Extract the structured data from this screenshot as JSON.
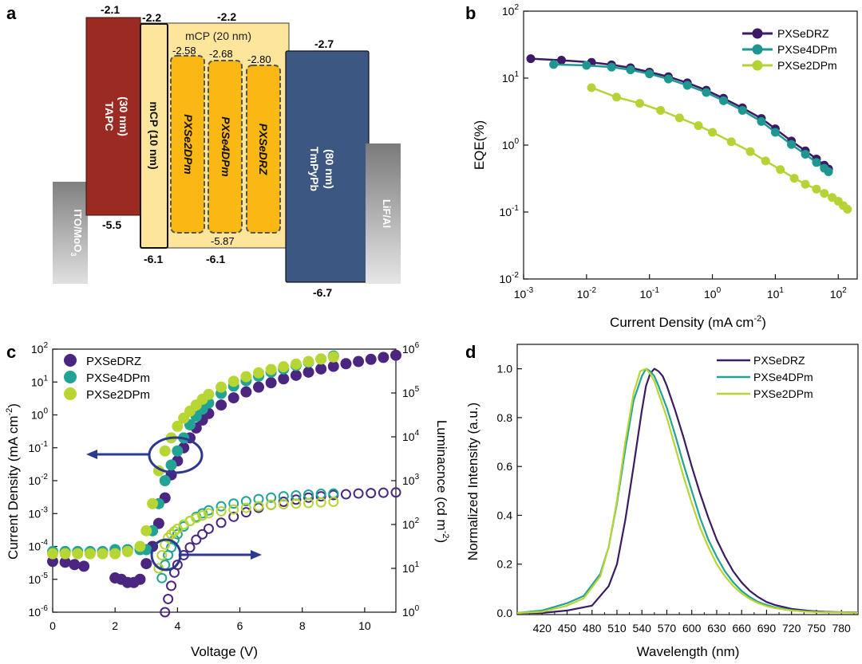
{
  "panel_labels": {
    "a": "a",
    "b": "b",
    "c": "c",
    "d": "d"
  },
  "chart_data": [
    {
      "type": "energy-level-diagram",
      "panel": "a",
      "layers": [
        {
          "name": "ITO/MoO3",
          "label_main": "ITO/MoO",
          "label_sub": "3",
          "color": "#8c8c8c"
        },
        {
          "name": "TAPC",
          "label": "TAPC",
          "label2": "(30 nm)",
          "lumo": "-2.1",
          "homo": "-5.5",
          "color": "#9a2a24"
        },
        {
          "name": "mCP (10 nm)",
          "label": "mCP (10 nm)",
          "lumo": "-2.2",
          "homo": "-6.1",
          "color": "#fde39a"
        },
        {
          "name": "mCP (20 nm)",
          "label": "mCP (20 nm)",
          "lumo": "-2.2",
          "homo": "-6.1",
          "color": "#fde39a"
        },
        {
          "name": "PXSe2DPm",
          "label": "PXSe2DPm",
          "lumo": "-2.58",
          "color": "#fbb613"
        },
        {
          "name": "PXSe4DPm",
          "label": "PXSe4DPm",
          "lumo": "-2.68",
          "homo": "-5.87",
          "color": "#fbb613"
        },
        {
          "name": "PXSeDRZ",
          "label": "PXSeDRZ",
          "lumo": "-2.80",
          "color": "#fbb613"
        },
        {
          "name": "TmPyPb",
          "label": "TmPyPb",
          "label2": "(80 nm)",
          "lumo": "-2.7",
          "homo": "-6.7",
          "color": "#3b5780"
        },
        {
          "name": "LiF/Al",
          "label": "LiF/Al",
          "color": "#8c8c8c"
        }
      ]
    },
    {
      "type": "line",
      "panel": "b",
      "xscale": "log",
      "yscale": "log",
      "xlim": [
        0.001,
        200
      ],
      "ylim": [
        0.01,
        100
      ],
      "xlabel": "Current Density (mA cm",
      "xlabel_sup": "-2",
      "xlabel_end": ")",
      "ylabel": "EQE(%)",
      "xticks": [
        {
          "v": 0.001,
          "base": "10",
          "exp": "-3"
        },
        {
          "v": 0.01,
          "base": "10",
          "exp": "-2"
        },
        {
          "v": 0.1,
          "base": "10",
          "exp": "-1"
        },
        {
          "v": 1,
          "base": "10",
          "exp": "0"
        },
        {
          "v": 10,
          "base": "10",
          "exp": "1"
        },
        {
          "v": 100,
          "base": "10",
          "exp": "2"
        }
      ],
      "yticks": [
        {
          "v": 0.01,
          "base": "10",
          "exp": "-2"
        },
        {
          "v": 0.1,
          "base": "10",
          "exp": "-1"
        },
        {
          "v": 1,
          "base": "10",
          "exp": "0"
        },
        {
          "v": 10,
          "base": "10",
          "exp": "1"
        },
        {
          "v": 100,
          "base": "10",
          "exp": "2"
        }
      ],
      "legend_position": "top-right",
      "series": [
        {
          "name": "PXSeDRZ",
          "color": "#3b1a66",
          "x": [
            0.0013,
            0.004,
            0.012,
            0.025,
            0.05,
            0.1,
            0.2,
            0.4,
            0.8,
            1.5,
            3,
            6,
            10,
            18,
            30,
            45,
            60,
            70
          ],
          "y": [
            19.5,
            18.5,
            17.2,
            15.8,
            14.3,
            12.3,
            10.5,
            8.5,
            6.6,
            5.0,
            3.6,
            2.5,
            1.75,
            1.15,
            0.82,
            0.62,
            0.5,
            0.44
          ]
        },
        {
          "name": "PXSe4DPm",
          "color": "#1e9790",
          "x": [
            0.003,
            0.01,
            0.025,
            0.05,
            0.1,
            0.2,
            0.4,
            0.8,
            1.5,
            3,
            6,
            10,
            18,
            30,
            45,
            60,
            70
          ],
          "y": [
            16.0,
            15.5,
            14.6,
            13.3,
            11.6,
            9.7,
            7.8,
            6.1,
            4.6,
            3.3,
            2.25,
            1.55,
            1.02,
            0.73,
            0.55,
            0.45,
            0.4
          ]
        },
        {
          "name": "PXSe2DPm",
          "color": "#b5d335",
          "x": [
            0.012,
            0.03,
            0.07,
            0.15,
            0.3,
            0.6,
            1,
            2,
            4,
            7,
            12,
            20,
            30,
            45,
            60,
            80,
            100,
            120,
            140
          ],
          "y": [
            7.2,
            5.2,
            4.2,
            3.3,
            2.55,
            1.95,
            1.55,
            1.12,
            0.8,
            0.58,
            0.43,
            0.32,
            0.26,
            0.22,
            0.19,
            0.165,
            0.145,
            0.125,
            0.11
          ]
        }
      ]
    },
    {
      "type": "scatter",
      "panel": "c",
      "xlim": [
        0,
        11
      ],
      "ylim": [
        1e-06,
        100
      ],
      "y2lim": [
        1,
        1000000
      ],
      "yscale": "log",
      "y2scale": "log",
      "xlabel": "Voltage (V)",
      "ylabel": "Current Density (mA cm",
      "ylabel_sup": "-2",
      "ylabel_end": ")",
      "y2label": "Luminacnce (cd m",
      "y2label_sup": "-2",
      "y2label_end": ")",
      "xticks": [
        0,
        2,
        4,
        6,
        8,
        10
      ],
      "yticks": [
        {
          "v": 1e-06,
          "base": "10",
          "exp": "-6"
        },
        {
          "v": 1e-05,
          "base": "10",
          "exp": "-5"
        },
        {
          "v": 0.0001,
          "base": "10",
          "exp": "-4"
        },
        {
          "v": 0.001,
          "base": "10",
          "exp": "-3"
        },
        {
          "v": 0.01,
          "base": "10",
          "exp": "-2"
        },
        {
          "v": 0.1,
          "base": "10",
          "exp": "-1"
        },
        {
          "v": 1,
          "base": "10",
          "exp": "0"
        },
        {
          "v": 10,
          "base": "10",
          "exp": "1"
        },
        {
          "v": 100,
          "base": "10",
          "exp": "2"
        }
      ],
      "y2ticks": [
        {
          "v": 1,
          "base": "10",
          "exp": "0"
        },
        {
          "v": 10,
          "base": "10",
          "exp": "1"
        },
        {
          "v": 100,
          "base": "10",
          "exp": "2"
        },
        {
          "v": 1000,
          "base": "10",
          "exp": "3"
        },
        {
          "v": 10000,
          "base": "10",
          "exp": "4"
        },
        {
          "v": 100000,
          "base": "10",
          "exp": "5"
        },
        {
          "v": 1000000,
          "base": "10",
          "exp": "6"
        }
      ],
      "legend_position": "top-left",
      "series": [
        {
          "name": "PXSeDRZ",
          "color": "#4b2681",
          "cd_x": [
            0,
            0.4,
            0.7,
            1.0,
            2.0,
            2.2,
            2.4,
            2.6,
            2.8,
            3.0,
            3.2,
            3.4,
            3.6,
            3.8,
            4.0,
            4.2,
            4.4,
            4.6,
            4.8,
            5.0,
            5.4,
            5.8,
            6.2,
            6.6,
            7.0,
            7.4,
            7.8,
            8.2,
            8.6,
            9.0,
            9.4,
            9.8,
            10.2,
            10.6,
            11.0
          ],
          "cd_y": [
            3.5e-05,
            3.3e-05,
            2.8e-05,
            2.5e-05,
            1.1e-05,
            1e-05,
            8e-06,
            8e-06,
            1e-05,
            3e-05,
            0.0001,
            0.0005,
            0.003,
            0.015,
            0.04,
            0.1,
            0.2,
            0.4,
            0.7,
            1.1,
            2.0,
            3.3,
            5,
            7,
            9.5,
            12.5,
            16,
            20,
            25,
            30,
            36,
            42,
            49,
            56,
            65
          ],
          "lum_x": [
            3.6,
            3.7,
            3.8,
            3.9,
            4.0,
            4.2,
            4.4,
            4.6,
            4.8,
            5.0,
            5.4,
            5.8,
            6.2,
            6.6,
            7.0,
            7.4,
            7.8,
            8.2,
            8.6,
            9.0,
            9.4,
            9.8,
            10.2,
            10.6,
            11.0
          ],
          "lum_y": [
            1,
            2,
            4,
            8,
            12,
            20,
            30,
            45,
            60,
            80,
            110,
            150,
            190,
            240,
            280,
            330,
            370,
            410,
            440,
            470,
            490,
            510,
            520,
            530,
            540
          ]
        },
        {
          "name": "PXSe4DPm",
          "color": "#21a395",
          "cd_x": [
            0,
            0.4,
            0.8,
            1.2,
            1.6,
            2.0,
            2.4,
            2.8,
            3.0,
            3.2,
            3.4,
            3.6,
            3.8,
            4.0,
            4.2,
            4.4,
            4.6,
            4.8,
            5.0,
            5.4,
            5.8,
            6.2,
            6.6,
            7.0,
            7.4,
            7.8,
            8.2,
            8.6,
            9.0
          ],
          "cd_y": [
            7e-05,
            7e-05,
            7e-05,
            7e-05,
            7e-05,
            8e-05,
            8e-05,
            8e-05,
            8e-05,
            0.0003,
            0.002,
            0.01,
            0.03,
            0.08,
            0.2,
            0.5,
            0.9,
            1.5,
            2.3,
            4.5,
            7.5,
            11,
            15,
            20,
            25,
            32,
            40,
            50,
            62
          ],
          "lum_x": [
            3.5,
            3.6,
            3.7,
            3.8,
            3.9,
            4.0,
            4.2,
            4.4,
            4.6,
            4.8,
            5.0,
            5.4,
            5.8,
            6.2,
            6.6,
            7.0,
            7.4,
            7.8,
            8.2,
            8.6,
            9.0
          ],
          "lum_y": [
            6,
            12,
            20,
            30,
            45,
            60,
            90,
            120,
            150,
            180,
            210,
            260,
            300,
            340,
            380,
            410,
            440,
            460,
            480,
            500,
            510
          ]
        },
        {
          "name": "PXSe2DPm",
          "color": "#b7d633",
          "cd_x": [
            0,
            0.4,
            0.8,
            1.2,
            1.6,
            2.0,
            2.4,
            2.8,
            3.0,
            3.2,
            3.4,
            3.6,
            3.8,
            4.0,
            4.2,
            4.4,
            4.6,
            4.8,
            5.0,
            5.4,
            5.8,
            6.2,
            6.6,
            7.0,
            7.4,
            7.8,
            8.2,
            8.6,
            9.0
          ],
          "cd_y": [
            6e-05,
            6e-05,
            6e-05,
            6e-05,
            6e-05,
            6e-05,
            7e-05,
            0.0001,
            0.0003,
            0.002,
            0.02,
            0.08,
            0.2,
            0.45,
            0.8,
            1.3,
            2.0,
            3.0,
            4.2,
            7,
            10.5,
            14.5,
            19,
            24,
            29,
            35,
            42,
            50,
            58
          ],
          "lum_x": [
            3.4,
            3.5,
            3.6,
            3.7,
            3.8,
            3.9,
            4.0,
            4.2,
            4.4,
            4.6,
            4.8,
            5.0,
            5.4,
            5.8,
            6.2,
            6.6,
            7.0,
            7.4,
            7.8,
            8.2,
            8.6,
            9.0
          ],
          "lum_y": [
            10,
            20,
            35,
            50,
            60,
            70,
            80,
            100,
            120,
            140,
            160,
            180,
            200,
            220,
            240,
            260,
            280,
            290,
            300,
            310,
            320,
            330
          ]
        }
      ]
    },
    {
      "type": "line",
      "panel": "d",
      "xlim": [
        390,
        800
      ],
      "ylim": [
        0,
        1.1
      ],
      "xlabel": "Wavelength (nm)",
      "ylabel": "Normalized Intensity (a.u.)",
      "xticks": [
        420,
        450,
        480,
        510,
        540,
        570,
        600,
        630,
        660,
        690,
        720,
        750,
        780
      ],
      "yticks": [
        0.0,
        0.2,
        0.4,
        0.6,
        0.8,
        1.0
      ],
      "legend_position": "top-right",
      "series": [
        {
          "name": "PXSeDRZ",
          "color": "#3b1a66",
          "x": [
            390,
            420,
            450,
            480,
            500,
            510,
            520,
            530,
            540,
            545,
            550,
            555,
            560,
            565,
            570,
            580,
            590,
            600,
            610,
            620,
            630,
            640,
            650,
            660,
            670,
            680,
            690,
            700,
            720,
            740,
            760,
            780,
            800
          ],
          "y": [
            0,
            0,
            0.01,
            0.03,
            0.11,
            0.2,
            0.38,
            0.6,
            0.83,
            0.93,
            0.98,
            1.0,
            0.99,
            0.97,
            0.93,
            0.83,
            0.72,
            0.6,
            0.49,
            0.39,
            0.3,
            0.23,
            0.17,
            0.125,
            0.09,
            0.065,
            0.045,
            0.033,
            0.017,
            0.009,
            0.005,
            0.003,
            0.002
          ]
        },
        {
          "name": "PXSe4DPm",
          "color": "#21a395",
          "x": [
            390,
            420,
            450,
            470,
            490,
            500,
            510,
            520,
            530,
            540,
            545,
            550,
            555,
            560,
            570,
            580,
            590,
            600,
            610,
            620,
            630,
            640,
            650,
            660,
            670,
            680,
            690,
            700,
            720,
            740,
            760,
            780,
            800
          ],
          "y": [
            0,
            0.01,
            0.04,
            0.07,
            0.16,
            0.27,
            0.45,
            0.67,
            0.87,
            0.97,
            1.0,
            0.99,
            0.97,
            0.93,
            0.84,
            0.73,
            0.61,
            0.5,
            0.39,
            0.3,
            0.23,
            0.17,
            0.125,
            0.09,
            0.065,
            0.045,
            0.033,
            0.023,
            0.012,
            0.006,
            0.003,
            0.002,
            0.001
          ]
        },
        {
          "name": "PXSe2DPm",
          "color": "#b7d633",
          "x": [
            390,
            420,
            450,
            470,
            490,
            500,
            510,
            520,
            530,
            538,
            545,
            550,
            555,
            560,
            570,
            580,
            590,
            600,
            610,
            620,
            630,
            640,
            650,
            660,
            670,
            680,
            690,
            700,
            720,
            740,
            760,
            780,
            800
          ],
          "y": [
            0,
            0.005,
            0.03,
            0.06,
            0.15,
            0.27,
            0.46,
            0.7,
            0.9,
            0.99,
            1.0,
            0.98,
            0.95,
            0.9,
            0.8,
            0.68,
            0.56,
            0.45,
            0.35,
            0.27,
            0.2,
            0.15,
            0.11,
            0.08,
            0.057,
            0.04,
            0.028,
            0.02,
            0.01,
            0.005,
            0.003,
            0.002,
            0.001
          ]
        }
      ]
    }
  ]
}
